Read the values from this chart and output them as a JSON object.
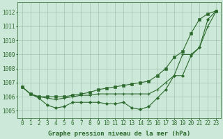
{
  "title": "Graphe pression niveau de la mer (hPa)",
  "bg_color": "#cce8d8",
  "grid_color": "#99bbaa",
  "line_color": "#2d6a2d",
  "marker_color": "#2d6a2d",
  "hours": [
    0,
    1,
    2,
    3,
    4,
    5,
    6,
    7,
    8,
    9,
    10,
    11,
    12,
    13,
    14,
    15,
    16,
    17,
    18,
    19,
    20,
    21,
    22,
    23
  ],
  "series_top": [
    1006.7,
    1006.2,
    1006.0,
    1006.0,
    1006.0,
    1006.0,
    1006.1,
    1006.2,
    1006.3,
    1006.5,
    1006.6,
    1006.7,
    1006.8,
    1006.9,
    1007.0,
    1007.1,
    1007.5,
    1008.0,
    1008.8,
    1009.2,
    1010.5,
    1011.5,
    1011.9,
    1012.1
  ],
  "series_mid": [
    1006.7,
    1006.2,
    1006.0,
    1005.9,
    1005.8,
    1005.9,
    1006.0,
    1006.1,
    1006.1,
    1006.2,
    1006.2,
    1006.2,
    1006.2,
    1006.2,
    1006.2,
    1006.2,
    1006.5,
    1007.0,
    1007.5,
    1009.0,
    1009.0,
    1009.5,
    1011.0,
    1012.1
  ],
  "series_bot": [
    1006.7,
    1006.2,
    1005.9,
    1005.4,
    1005.2,
    1005.3,
    1005.6,
    1005.6,
    1005.6,
    1005.6,
    1005.5,
    1005.5,
    1005.6,
    1005.2,
    1005.1,
    1005.3,
    1005.9,
    1006.5,
    1007.5,
    1007.5,
    1008.9,
    1009.5,
    1011.5,
    1012.1
  ],
  "ylim_min": 1004.5,
  "ylim_max": 1012.7,
  "yticks": [
    1005,
    1006,
    1007,
    1008,
    1009,
    1010,
    1011,
    1012
  ],
  "fontsize_label": 6.5,
  "fontsize_tick": 5.5
}
